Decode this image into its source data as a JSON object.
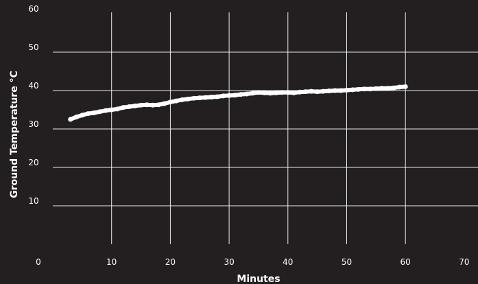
{
  "chart_data": {
    "type": "line",
    "title": "",
    "xlabel": "Minutes",
    "ylabel": "Ground Temperature °C",
    "xlim": [
      0,
      70
    ],
    "ylim": [
      0,
      60
    ],
    "x_ticks": [
      "0",
      "10",
      "20",
      "30",
      "40",
      "50",
      "60",
      "70"
    ],
    "y_ticks": [
      "10",
      "20",
      "30",
      "40",
      "50",
      "60"
    ],
    "grid": true,
    "legend": "none",
    "colors": {
      "background": "#231f20",
      "line": "#ffffff",
      "grid": "#ffffff",
      "text": "#ffffff"
    },
    "series": [
      {
        "x": [
          3,
          4,
          5,
          6,
          7,
          8,
          9,
          10,
          11,
          12,
          13,
          14,
          15,
          16,
          17,
          18,
          19,
          20,
          21,
          22,
          23,
          24,
          25,
          26,
          27,
          28,
          29,
          30,
          31,
          32,
          33,
          34,
          35,
          36,
          37,
          38,
          39,
          40,
          41,
          42,
          43,
          44,
          45,
          46,
          47,
          48,
          49,
          50,
          51,
          52,
          53,
          54,
          55,
          56,
          57,
          58,
          59,
          60
        ],
        "y": [
          32.5,
          33.1,
          33.6,
          34.0,
          34.2,
          34.5,
          34.8,
          35.0,
          35.2,
          35.6,
          35.8,
          36.0,
          36.2,
          36.3,
          36.2,
          36.3,
          36.6,
          37.0,
          37.3,
          37.6,
          37.8,
          38.0,
          38.1,
          38.2,
          38.3,
          38.4,
          38.6,
          38.7,
          38.8,
          39.0,
          39.1,
          39.3,
          39.5,
          39.4,
          39.3,
          39.4,
          39.5,
          39.5,
          39.4,
          39.6,
          39.7,
          39.8,
          39.7,
          39.8,
          39.9,
          40.0,
          40.0,
          40.1,
          40.2,
          40.3,
          40.4,
          40.4,
          40.5,
          40.6,
          40.6,
          40.7,
          40.9,
          41.0
        ]
      }
    ]
  }
}
